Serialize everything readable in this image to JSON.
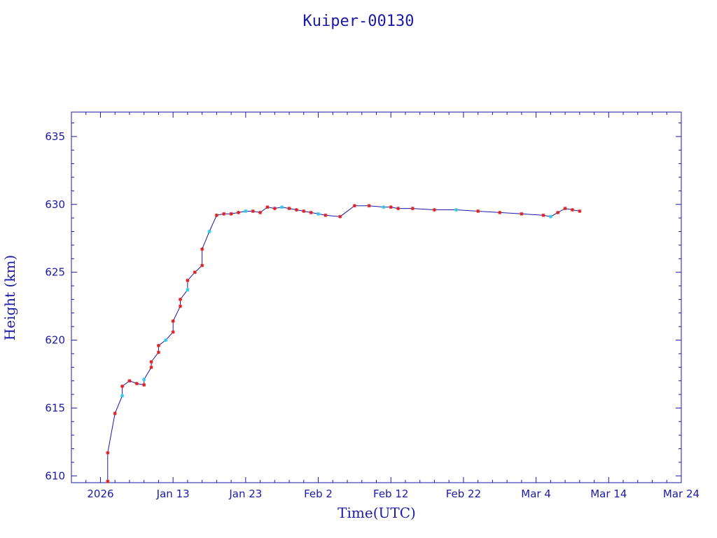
{
  "chart_data": {
    "type": "scatter",
    "title": "Kuiper-00130",
    "xlabel": "Time(UTC)",
    "ylabel": "Height (km)",
    "x_range_days_from_2026_01_01": [
      -2,
      82
    ],
    "ylim": [
      609.5,
      636.8
    ],
    "x_tick_labels": [
      "2026",
      "Jan 13",
      "Jan 23",
      "Feb  2",
      "Feb 12",
      "Feb 22",
      "Mar  4",
      "Mar 14",
      "Mar 24"
    ],
    "y_tick_labels": [
      "610",
      "615",
      "620",
      "625",
      "630",
      "635"
    ],
    "line_color": "#1a1aa6",
    "marker_colors": {
      "primary": "#e02020",
      "secondary": "#30c8e8"
    },
    "grid": false,
    "series": [
      {
        "x": [
          "Jan 4",
          "Jan 4",
          "Jan 5",
          "Jan 6",
          "Jan 6",
          "Jan 7",
          "Jan 8",
          "Jan 9",
          "Jan 9",
          "Jan 10",
          "Jan 10",
          "Jan 11",
          "Jan 11",
          "Jan 12",
          "Jan 13",
          "Jan 13",
          "Jan 14",
          "Jan 14",
          "Jan 15",
          "Jan 15",
          "Jan 16",
          "Jan 17",
          "Jan 17",
          "Jan 18",
          "Jan 19",
          "Jan 20",
          "Jan 21",
          "Jan 22",
          "Jan 23",
          "Jan 24",
          "Jan 25",
          "Jan 26",
          "Jan 27",
          "Jan 28",
          "Jan 29",
          "Jan 30",
          "Jan 31",
          "Feb 1",
          "Feb 2",
          "Feb 3",
          "Feb 5",
          "Feb 7",
          "Feb 9",
          "Feb 11",
          "Feb 12",
          "Feb 13",
          "Feb 15",
          "Feb 18",
          "Feb 21",
          "Feb 24",
          "Feb 27",
          "Mar 2",
          "Mar 5",
          "Mar 6",
          "Mar 7",
          "Mar 8",
          "Mar 9",
          "Mar 10"
        ],
        "y": [
          609.6,
          611.7,
          614.6,
          615.9,
          616.6,
          617.0,
          616.8,
          616.7,
          617.1,
          618.0,
          618.4,
          619.1,
          619.6,
          620.0,
          620.6,
          621.4,
          622.5,
          623.0,
          623.7,
          624.4,
          625.0,
          625.5,
          626.7,
          628.0,
          629.2,
          629.3,
          629.3,
          629.4,
          629.5,
          629.5,
          629.4,
          629.8,
          629.7,
          629.8,
          629.7,
          629.6,
          629.5,
          629.4,
          629.3,
          629.2,
          629.1,
          629.9,
          629.9,
          629.8,
          629.8,
          629.7,
          629.7,
          629.6,
          629.6,
          629.5,
          629.4,
          629.3,
          629.2,
          629.1,
          629.4,
          629.7,
          629.6,
          629.5
        ]
      }
    ]
  }
}
